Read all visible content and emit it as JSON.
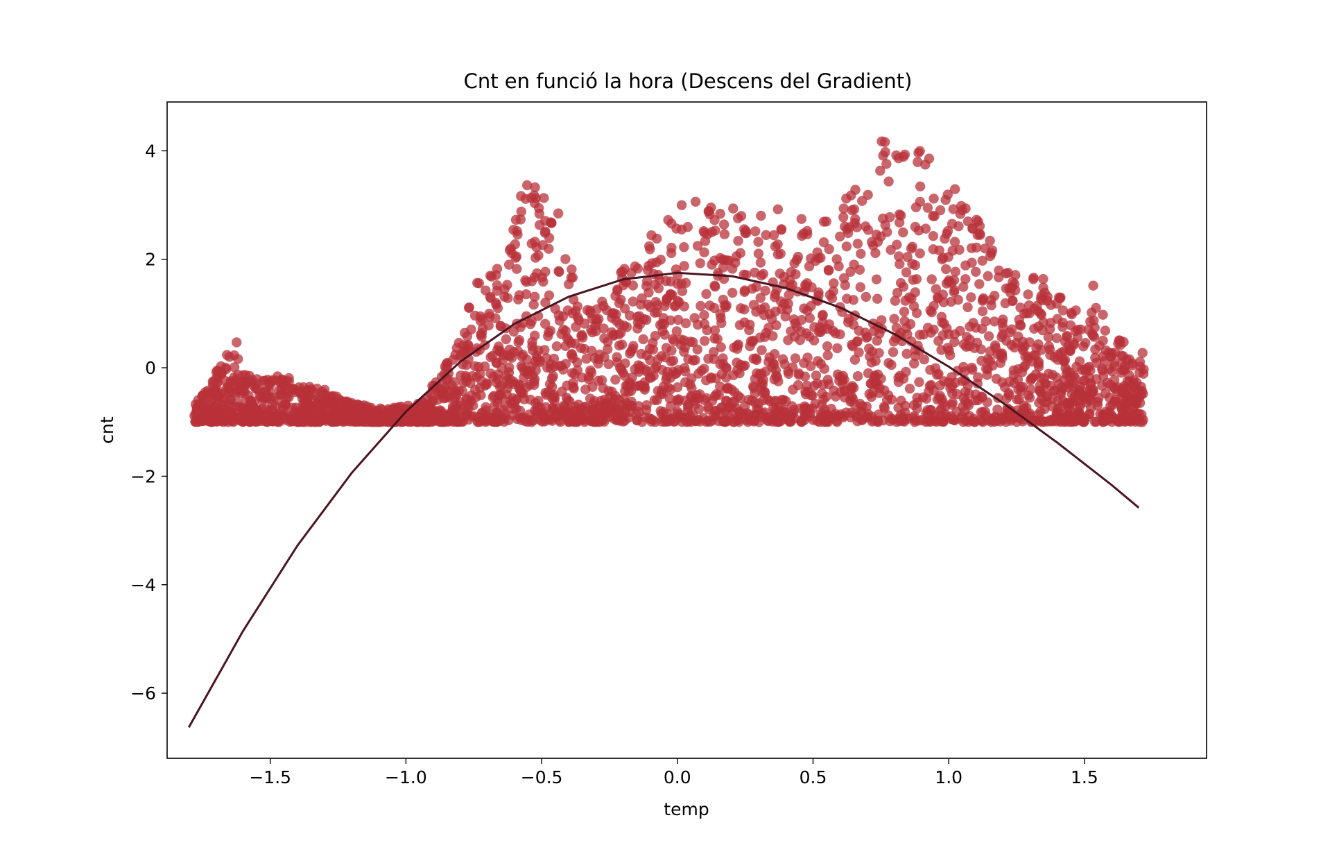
{
  "chart_data": {
    "type": "scatter",
    "title": "Cnt en funció la hora (Descens del Gradient)",
    "xlabel": "temp",
    "ylabel": "cnt",
    "xlim": [
      -1.88,
      1.95
    ],
    "ylim": [
      -7.2,
      4.9
    ],
    "xticks": [
      -1.5,
      -1.0,
      -0.5,
      0.0,
      0.5,
      1.0,
      1.5
    ],
    "xtick_labels": [
      "−1.5",
      "−1.0",
      "−0.5",
      "0.0",
      "0.5",
      "1.0",
      "1.5"
    ],
    "yticks": [
      4,
      2,
      0,
      -2,
      -4,
      -6
    ],
    "ytick_labels": [
      "4",
      "2",
      "0",
      "−2",
      "−4",
      "−6"
    ],
    "grid": false,
    "colors": {
      "points": "#b8323a",
      "fit_line": "#4a1420"
    },
    "scatter_density": [
      {
        "x": -1.78,
        "top": -0.7
      },
      {
        "x": -1.73,
        "top": -0.3
      },
      {
        "x": -1.68,
        "top": 0.1
      },
      {
        "x": -1.62,
        "top": 0.5
      },
      {
        "x": -1.6,
        "top": -0.1
      },
      {
        "x": -1.52,
        "top": -0.2
      },
      {
        "x": -1.45,
        "top": -0.1
      },
      {
        "x": -1.38,
        "top": -0.3
      },
      {
        "x": -1.3,
        "top": -0.4
      },
      {
        "x": -1.22,
        "top": -0.6
      },
      {
        "x": -1.15,
        "top": -0.7
      },
      {
        "x": -1.08,
        "top": -0.75
      },
      {
        "x": -1.0,
        "top": -0.7
      },
      {
        "x": -0.93,
        "top": -0.6
      },
      {
        "x": -0.88,
        "top": -0.1
      },
      {
        "x": -0.82,
        "top": 0.3
      },
      {
        "x": -0.76,
        "top": 1.3
      },
      {
        "x": -0.7,
        "top": 2.0
      },
      {
        "x": -0.63,
        "top": 2.1
      },
      {
        "x": -0.56,
        "top": 3.5
      },
      {
        "x": -0.5,
        "top": 3.5
      },
      {
        "x": -0.44,
        "top": 3.0
      },
      {
        "x": -0.38,
        "top": 1.6
      },
      {
        "x": -0.32,
        "top": 1.1
      },
      {
        "x": -0.26,
        "top": 1.4
      },
      {
        "x": -0.2,
        "top": 1.9
      },
      {
        "x": -0.14,
        "top": 2.3
      },
      {
        "x": -0.08,
        "top": 2.5
      },
      {
        "x": 0.02,
        "top": 3.2
      },
      {
        "x": 0.1,
        "top": 3.0
      },
      {
        "x": 0.18,
        "top": 2.9
      },
      {
        "x": 0.24,
        "top": 3.1
      },
      {
        "x": 0.3,
        "top": 2.8
      },
      {
        "x": 0.38,
        "top": 3.0
      },
      {
        "x": 0.46,
        "top": 2.9
      },
      {
        "x": 0.54,
        "top": 2.8
      },
      {
        "x": 0.62,
        "top": 3.2
      },
      {
        "x": 0.7,
        "top": 3.6
      },
      {
        "x": 0.76,
        "top": 4.3
      },
      {
        "x": 0.82,
        "top": 4.2
      },
      {
        "x": 0.9,
        "top": 4.3
      },
      {
        "x": 0.96,
        "top": 3.9
      },
      {
        "x": 1.02,
        "top": 3.4
      },
      {
        "x": 1.08,
        "top": 2.9
      },
      {
        "x": 1.14,
        "top": 2.6
      },
      {
        "x": 1.2,
        "top": 1.8
      },
      {
        "x": 1.28,
        "top": 1.7
      },
      {
        "x": 1.36,
        "top": 2.1
      },
      {
        "x": 1.44,
        "top": 0.9
      },
      {
        "x": 1.52,
        "top": 1.7
      },
      {
        "x": 1.6,
        "top": 0.7
      },
      {
        "x": 1.66,
        "top": 0.4
      },
      {
        "x": 1.72,
        "top": 0.3
      }
    ],
    "series": [
      {
        "type": "line",
        "x": [
          -1.8,
          -1.6,
          -1.4,
          -1.2,
          -1.0,
          -0.8,
          -0.6,
          -0.4,
          -0.2,
          0.0,
          0.2,
          0.4,
          0.6,
          0.8,
          1.0,
          1.2,
          1.4,
          1.6,
          1.7
        ],
        "values": [
          -6.63,
          -4.85,
          -3.28,
          -1.94,
          -0.81,
          0.11,
          0.81,
          1.31,
          1.63,
          1.75,
          1.69,
          1.47,
          1.11,
          0.62,
          0.02,
          -0.65,
          -1.38,
          -2.16,
          -2.58
        ]
      }
    ]
  }
}
